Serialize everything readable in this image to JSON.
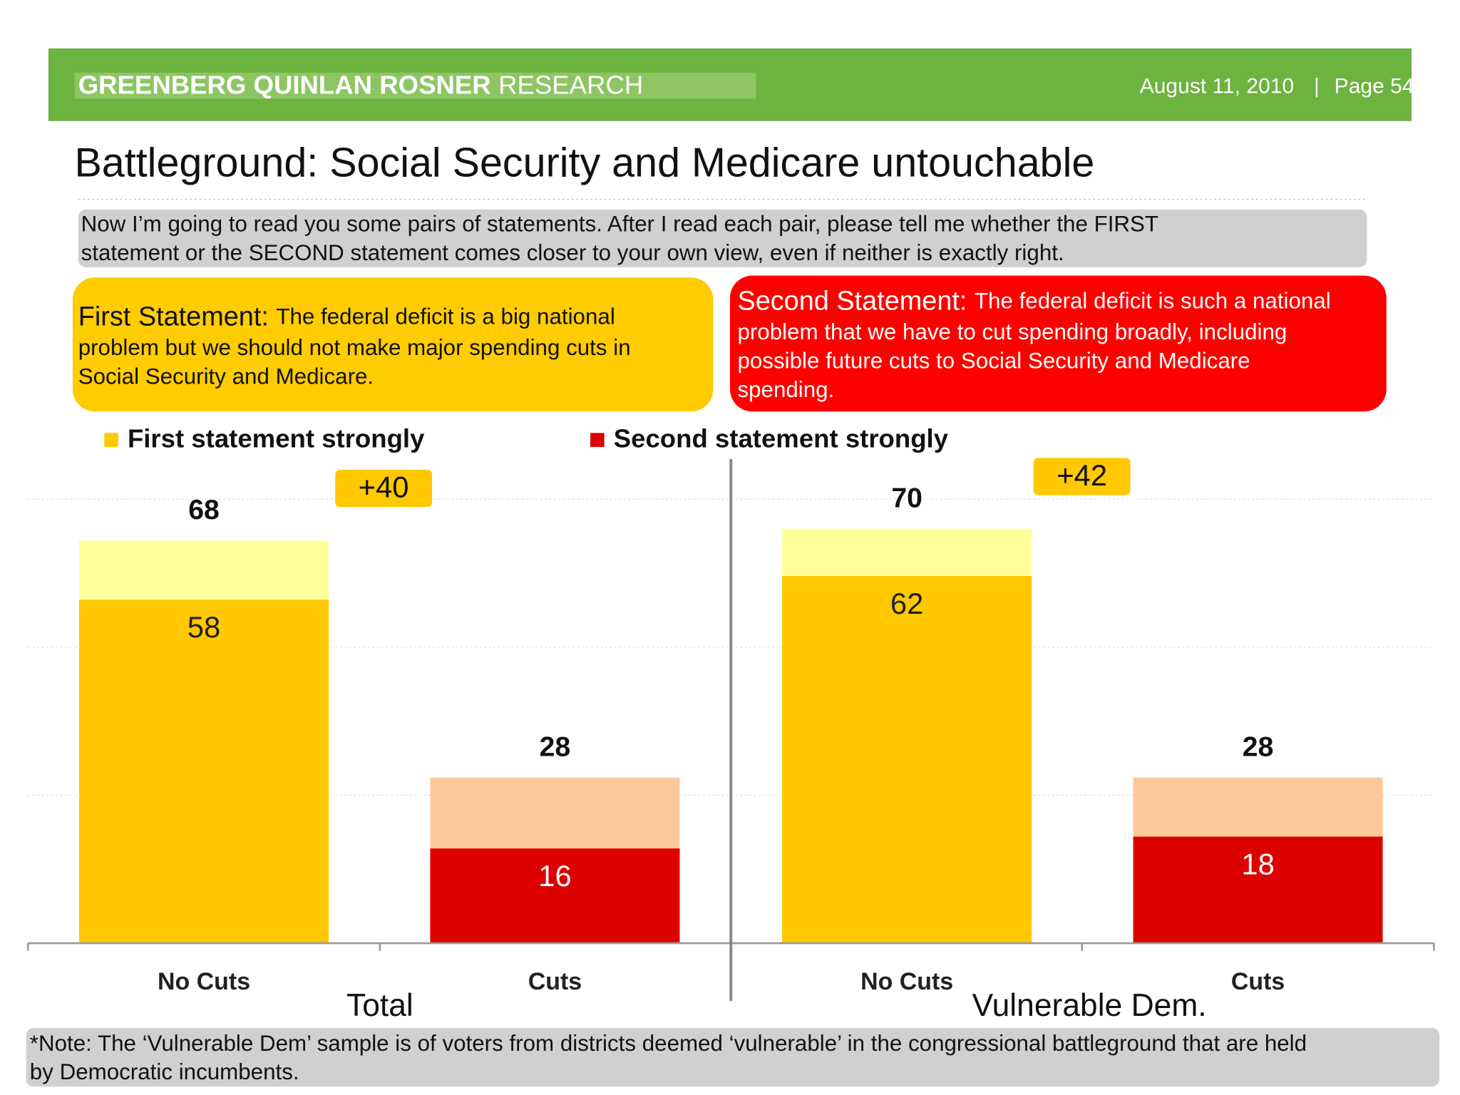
{
  "header": {
    "logo_bold": "GREENBERG QUINLAN ROSNER",
    "logo_light": "RESEARCH",
    "date": "August 11, 2010",
    "page": "Page 54"
  },
  "title": "Battleground: Social Security and Medicare untouchable",
  "question": [
    "Now I’m going to read you some pairs of statements. After I read each pair, please tell me whether the FIRST",
    "statement or the SECOND statement comes closer to your own view, even if neither is exactly right."
  ],
  "first_statement": {
    "label": "First Statement:",
    "lines": [
      "The federal deficit is a big national",
      "problem but we should not make major spending cuts in",
      "Social Security and Medicare."
    ]
  },
  "second_statement": {
    "label": "Second Statement:",
    "lines": [
      "The federal deficit is such a national",
      "problem that we have to cut spending broadly, including",
      "possible future cuts to Social Security and Medicare",
      "spending."
    ]
  },
  "chart_data": {
    "type": "bar",
    "categories": [
      "No Cuts",
      "Cuts",
      "No Cuts",
      "Cuts"
    ],
    "groups": [
      "Total",
      "Vulnerable Dem."
    ],
    "series": [
      {
        "name": "First statement strongly",
        "color": "#ffc800",
        "values": [
          58,
          null,
          62,
          null
        ]
      },
      {
        "name": "Second statement strongly",
        "color": "#dd0000",
        "values": [
          null,
          16,
          null,
          18
        ]
      }
    ],
    "totals": [
      68,
      28,
      70,
      28
    ],
    "total_colors": [
      "#ffff99",
      "#fdc99a",
      "#ffff99",
      "#fdc99a"
    ],
    "differences": [
      {
        "value": 40,
        "label": "+40"
      },
      {
        "value": 42,
        "label": "+42"
      }
    ],
    "ylim": [
      0,
      75
    ],
    "yticks": [
      0,
      25,
      50,
      75
    ],
    "grid": true
  },
  "note": [
    "*Note: The ‘Vulnerable Dem’ sample is of voters from districts deemed ‘vulnerable’ in the congressional battleground that are held",
    "by Democratic incumbents."
  ]
}
